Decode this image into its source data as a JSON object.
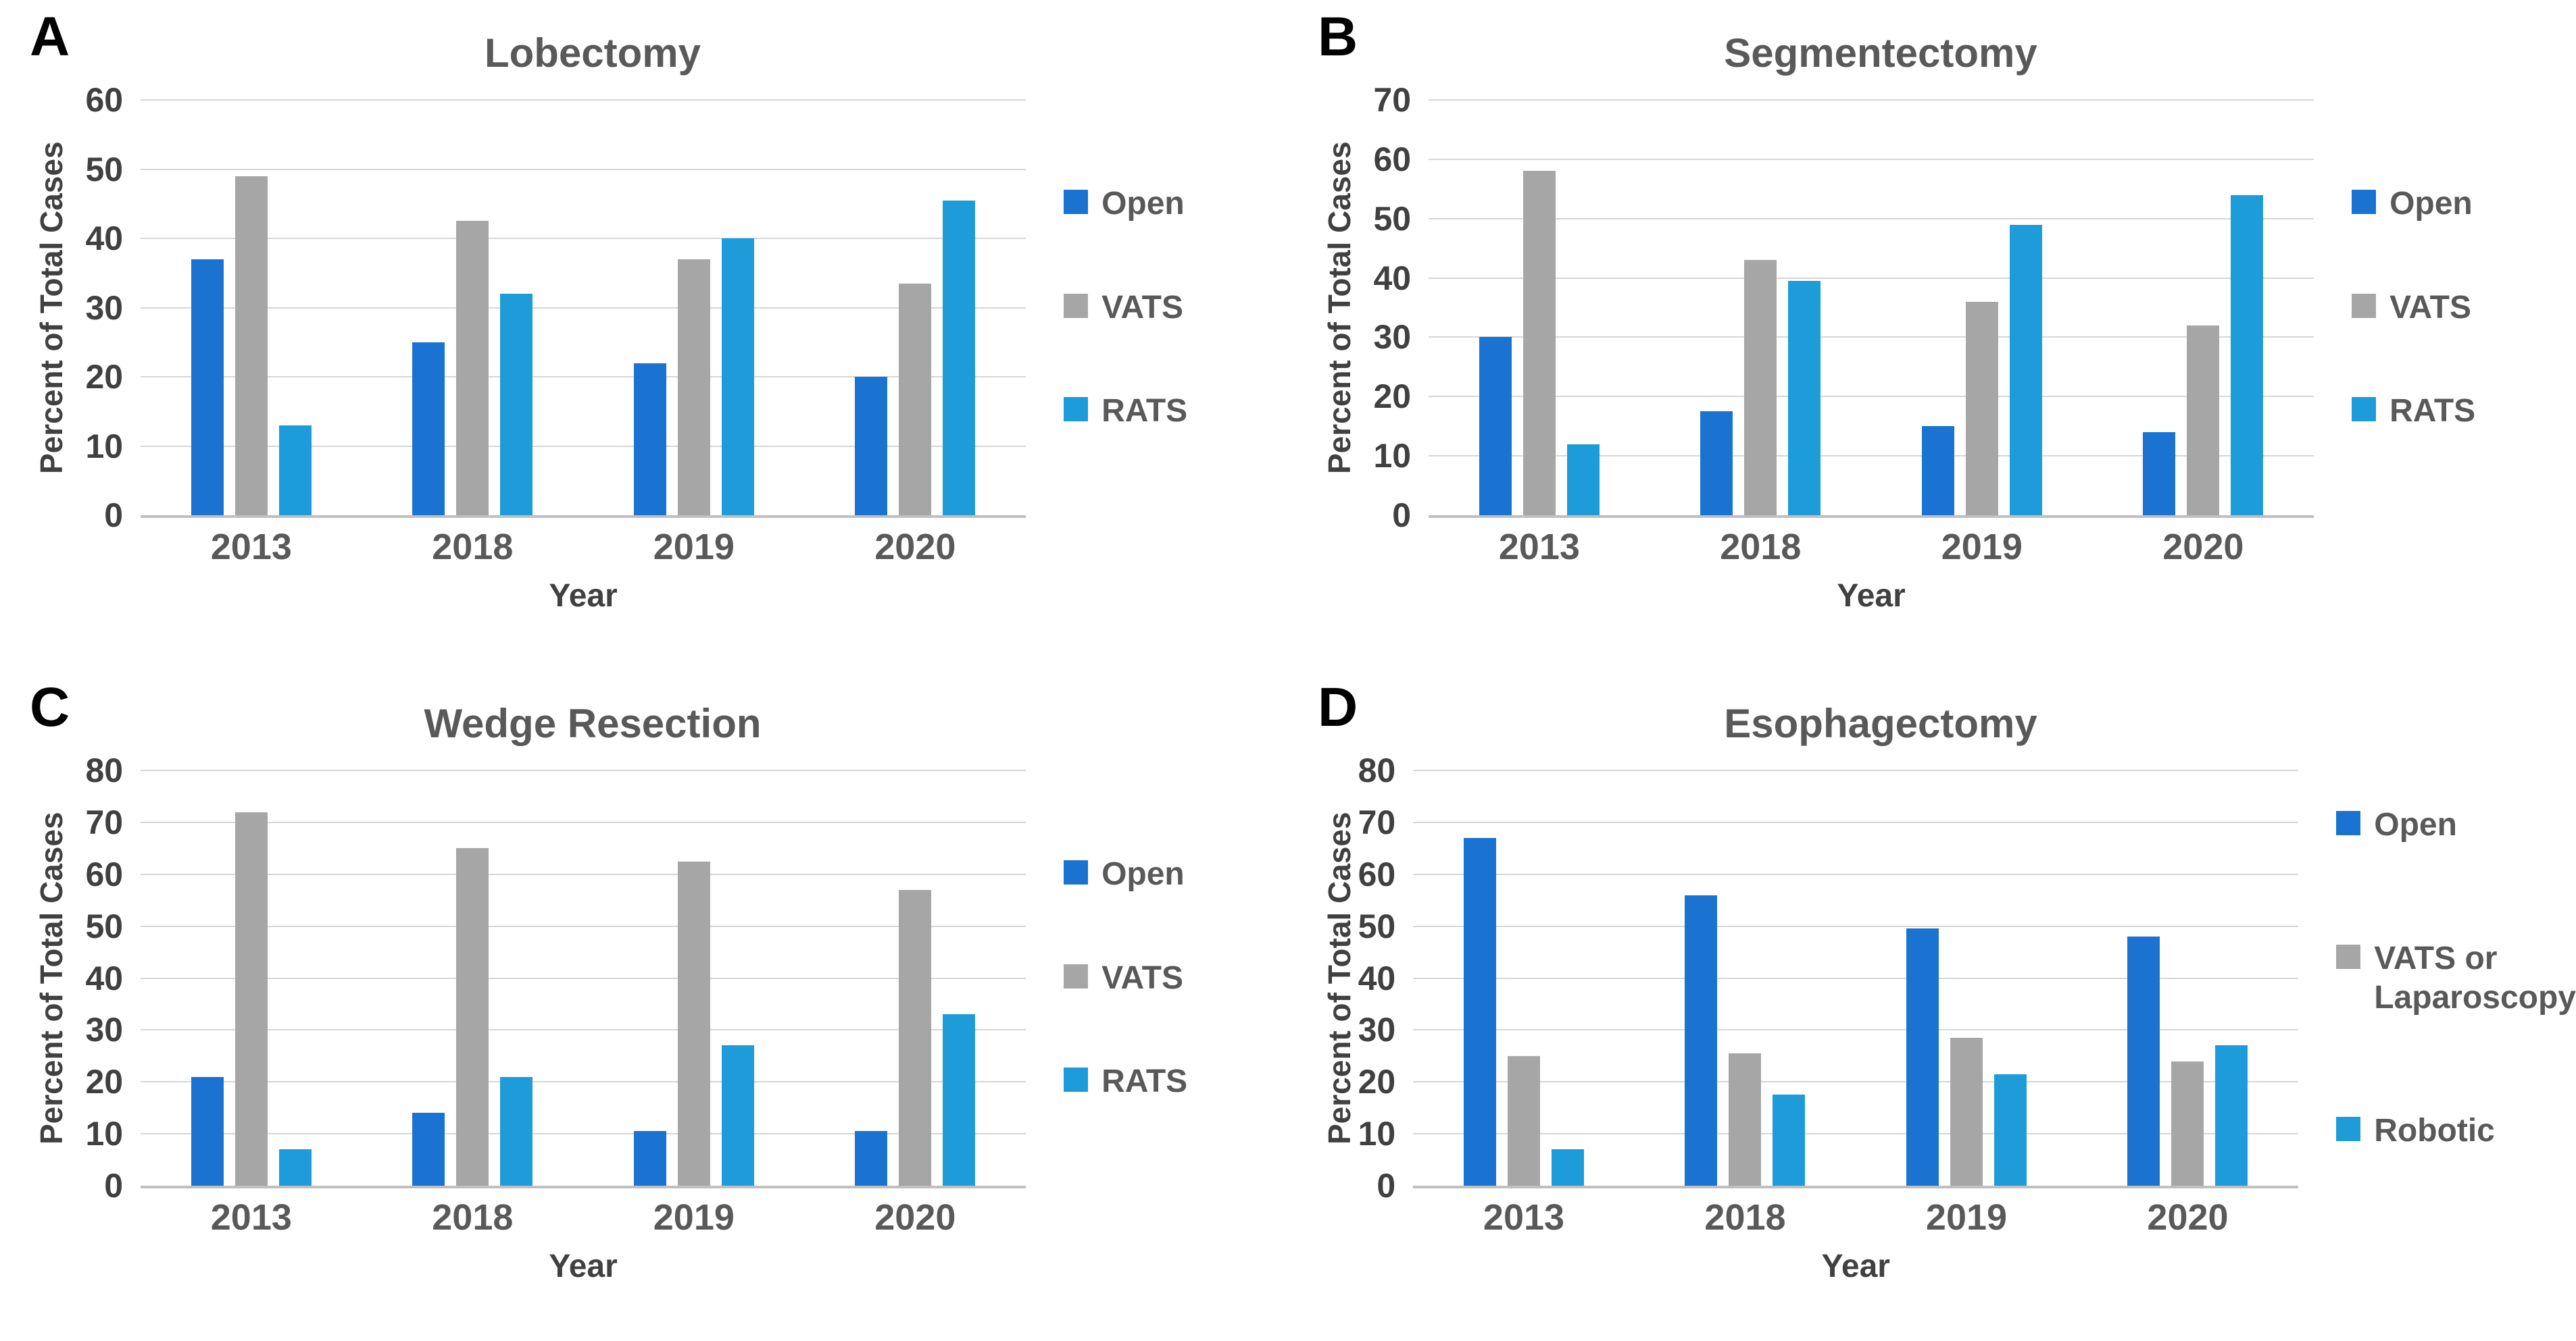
{
  "figure": {
    "y_axis_label": "Percent of Total Cases",
    "x_axis_label": "Year",
    "colors": {
      "open": "#1A73D0",
      "vats": "#A6A6A6",
      "rats": "#1E9CDA",
      "title_text": "#595959",
      "axis_text": "#404040",
      "gridline": "#D6D6D6",
      "baseline": "#BFBFBF",
      "panel_letter": "#000000"
    }
  },
  "chart_data": [
    {
      "panel_letter": "A",
      "title": "Lobectomy",
      "type": "bar",
      "categories": [
        "2013",
        "2018",
        "2019",
        "2020"
      ],
      "series": [
        {
          "name": "Open",
          "color_key": "open",
          "values": [
            37,
            25,
            22,
            20
          ]
        },
        {
          "name": "VATS",
          "color_key": "vats",
          "values": [
            49,
            42.5,
            37,
            33.5
          ]
        },
        {
          "name": "RATS",
          "color_key": "rats",
          "values": [
            13,
            32,
            40,
            45.5
          ]
        }
      ],
      "xlabel": "Year",
      "ylabel": "Percent of Total Cases",
      "ylim": [
        0,
        60
      ],
      "yticks": [
        0,
        10,
        20,
        30,
        40,
        50,
        60
      ],
      "grid": true,
      "legend_position": "right"
    },
    {
      "panel_letter": "B",
      "title": "Segmentectomy",
      "type": "bar",
      "categories": [
        "2013",
        "2018",
        "2019",
        "2020"
      ],
      "series": [
        {
          "name": "Open",
          "color_key": "open",
          "values": [
            30,
            17.5,
            15,
            14
          ]
        },
        {
          "name": "VATS",
          "color_key": "vats",
          "values": [
            58,
            43,
            36,
            32
          ]
        },
        {
          "name": "RATS",
          "color_key": "rats",
          "values": [
            12,
            39.5,
            49,
            54
          ]
        }
      ],
      "xlabel": "Year",
      "ylabel": "Percent of Total Cases",
      "ylim": [
        0,
        70
      ],
      "yticks": [
        0,
        10,
        20,
        30,
        40,
        50,
        60,
        70
      ],
      "grid": true,
      "legend_position": "right"
    },
    {
      "panel_letter": "C",
      "title": "Wedge Resection",
      "type": "bar",
      "categories": [
        "2013",
        "2018",
        "2019",
        "2020"
      ],
      "series": [
        {
          "name": "Open",
          "color_key": "open",
          "values": [
            21,
            14,
            10.5,
            10.5
          ]
        },
        {
          "name": "VATS",
          "color_key": "vats",
          "values": [
            72,
            65,
            62.5,
            57
          ]
        },
        {
          "name": "RATS",
          "color_key": "rats",
          "values": [
            7,
            21,
            27,
            33
          ]
        }
      ],
      "xlabel": "Year",
      "ylabel": "Percent of Total Cases",
      "ylim": [
        0,
        80
      ],
      "yticks": [
        0,
        10,
        20,
        30,
        40,
        50,
        60,
        70,
        80
      ],
      "grid": true,
      "legend_position": "right"
    },
    {
      "panel_letter": "D",
      "title": "Esophagectomy",
      "type": "bar",
      "categories": [
        "2013",
        "2018",
        "2019",
        "2020"
      ],
      "series": [
        {
          "name": "Open",
          "color_key": "open",
          "values": [
            67,
            56,
            49.5,
            48
          ]
        },
        {
          "name": "VATS or Laparoscopy",
          "color_key": "vats",
          "values": [
            25,
            25.5,
            28.5,
            24
          ]
        },
        {
          "name": "Robotic",
          "color_key": "rats",
          "values": [
            7,
            17.5,
            21.5,
            27
          ]
        }
      ],
      "xlabel": "Year",
      "ylabel": "Percent of Total Cases",
      "ylim": [
        0,
        80
      ],
      "yticks": [
        0,
        10,
        20,
        30,
        40,
        50,
        60,
        70,
        80
      ],
      "grid": true,
      "legend_position": "right"
    }
  ]
}
